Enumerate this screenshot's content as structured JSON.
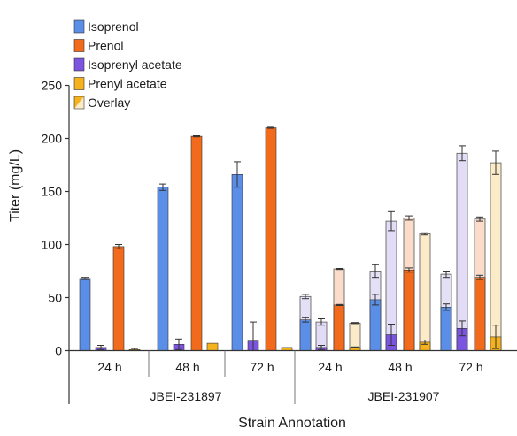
{
  "chart_data": {
    "type": "bar",
    "ylabel": "Titer (mg/L)",
    "xlabel": "Strain Annotation",
    "ylim": [
      0,
      250
    ],
    "yticks": [
      0,
      50,
      100,
      150,
      200,
      250
    ],
    "grid": false,
    "legend_position": "top-left",
    "legend": [
      "Isoprenol",
      "Prenol",
      "Isoprenyl acetate",
      "Prenyl acetate",
      "Overlay"
    ],
    "colors": {
      "Isoprenol": "#5b8ee6",
      "Prenol": "#f26a1b",
      "Isoprenyl acetate": "#7b55e0",
      "Prenyl acetate": "#f5b21c",
      "Isoprenol_overlay": "#e4e1f7",
      "Prenol_overlay": "#fbdccb",
      "Isoprenyl_acetate_overlay": "#e2dcf6",
      "Prenyl_acetate_overlay": "#fcebc8"
    },
    "groups": [
      {
        "name": "JBEI-231897",
        "categories": [
          "24 h",
          "48 h",
          "72 h"
        ]
      },
      {
        "name": "JBEI-231907",
        "categories": [
          "24 h",
          "48 h",
          "72 h"
        ]
      }
    ],
    "series": [
      {
        "name": "Isoprenol",
        "values": [
          68,
          154,
          166,
          29,
          48,
          41
        ],
        "errors": [
          1,
          3,
          12,
          2,
          5,
          3
        ],
        "overlay": [
          null,
          null,
          null,
          51,
          75,
          72
        ],
        "overlay_errors": [
          null,
          null,
          null,
          2,
          6,
          3
        ]
      },
      {
        "name": "Isoprenyl acetate",
        "values": [
          3,
          6,
          9,
          3,
          15,
          21
        ],
        "errors": [
          2,
          5,
          18,
          2,
          10,
          7
        ],
        "overlay": [
          null,
          null,
          null,
          27,
          122,
          186
        ],
        "overlay_errors": [
          null,
          null,
          null,
          3,
          9,
          7
        ]
      },
      {
        "name": "Prenol",
        "values": [
          98,
          202,
          210,
          43,
          76,
          69
        ],
        "errors": [
          2,
          0.5,
          0.5,
          0.5,
          2,
          2
        ],
        "overlay": [
          null,
          null,
          null,
          77,
          125,
          124
        ],
        "overlay_errors": [
          null,
          null,
          null,
          0.5,
          2,
          2
        ]
      },
      {
        "name": "Prenyl acetate",
        "values": [
          1,
          7,
          3,
          3,
          8,
          13
        ],
        "errors": [
          1,
          0,
          0,
          0.5,
          2,
          11
        ],
        "overlay": [
          null,
          null,
          null,
          26,
          110,
          177
        ],
        "overlay_errors": [
          null,
          null,
          null,
          0.5,
          1,
          11
        ]
      }
    ]
  }
}
